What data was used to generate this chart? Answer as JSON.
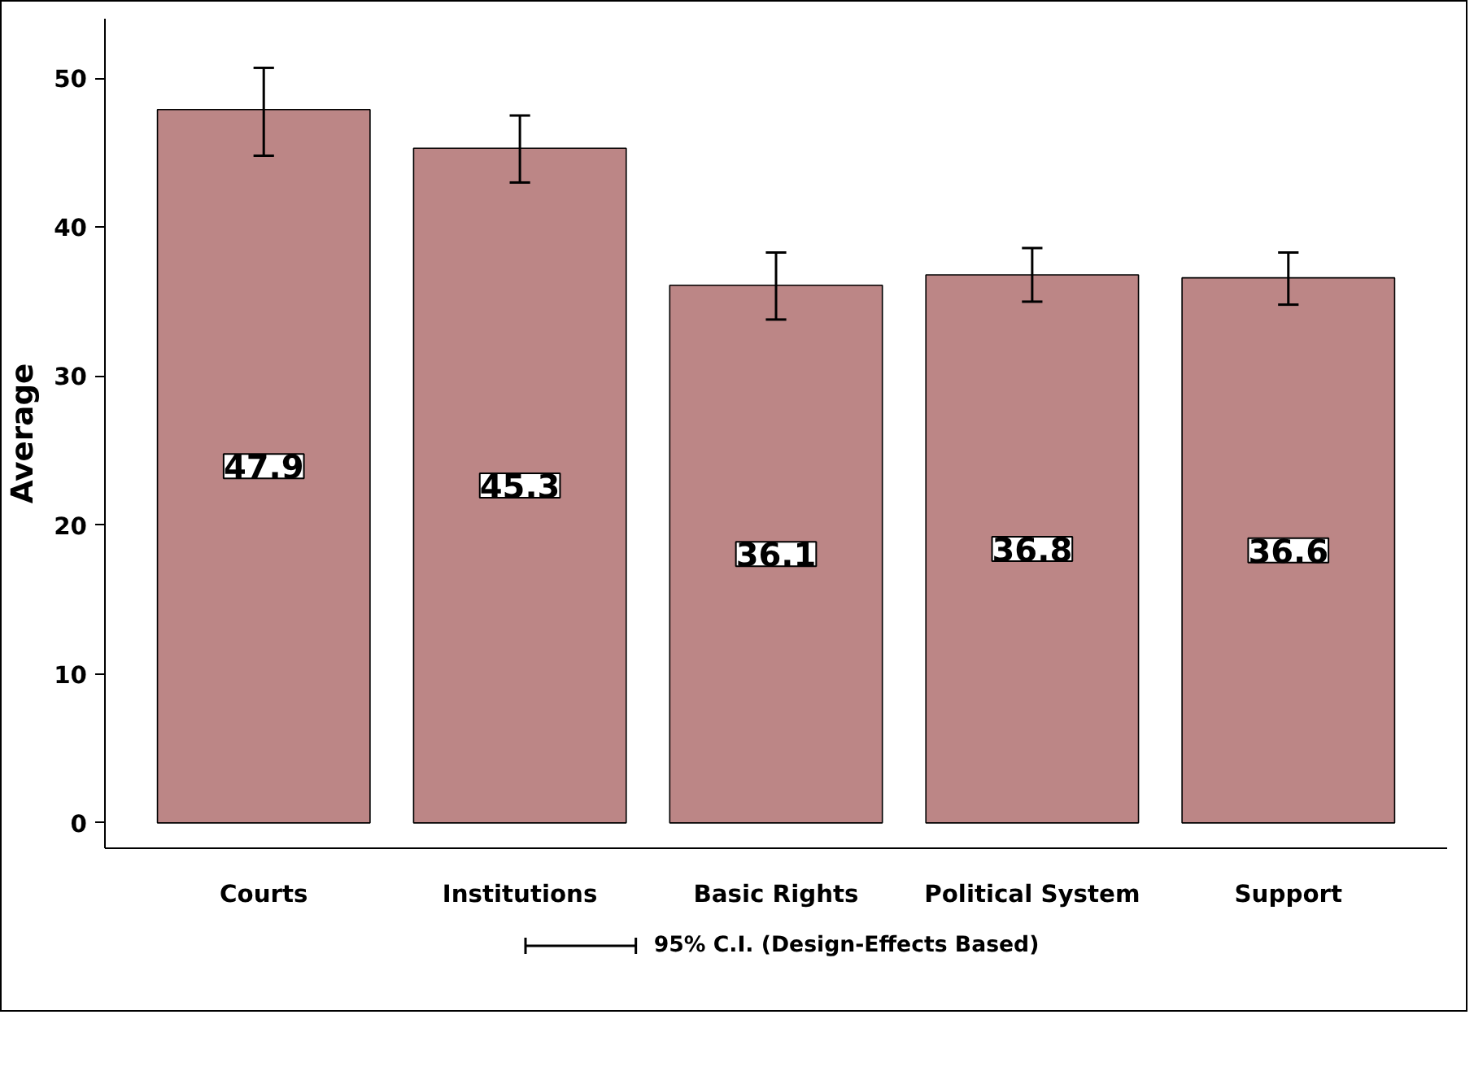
{
  "chart_data": {
    "type": "bar",
    "ylabel": "Average",
    "categories": [
      "Courts",
      "Institutions",
      "Basic Rights",
      "Political System",
      "Support"
    ],
    "values": [
      47.9,
      45.3,
      36.1,
      36.8,
      36.6
    ],
    "color": "#bc8686",
    "errors": [
      [
        44.8,
        50.7
      ],
      [
        43.0,
        47.5
      ],
      [
        33.8,
        38.3
      ],
      [
        35.0,
        38.6
      ],
      [
        34.8,
        38.3
      ]
    ],
    "data_labels": true,
    "ylim": [
      -1.7,
      54
    ],
    "yticks": [
      0,
      10,
      20,
      30,
      40,
      50
    ],
    "grid": false,
    "annotations": [
      "95% C.I. (Design-Effects Based)"
    ]
  }
}
